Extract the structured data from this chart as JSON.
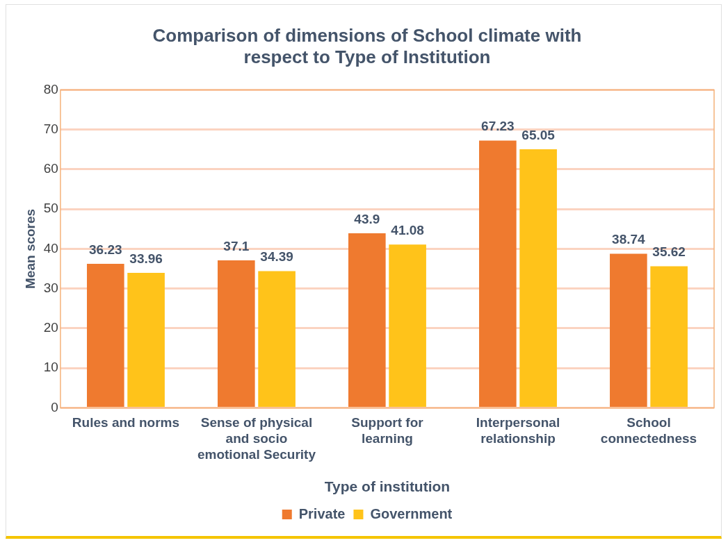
{
  "chart_data": {
    "type": "bar",
    "title": "Comparison of dimensions of School climate with respect to Type of Institution",
    "xlabel": "Type of institution",
    "ylabel": "Mean scores",
    "categories": [
      "Rules and norms",
      "Sense of physical and socio emotional Security",
      "Support for learning",
      "Interpersonal relationship",
      "School connectedness"
    ],
    "series": [
      {
        "name": "Private",
        "color": "#ef7a2f",
        "values": [
          36.23,
          37.1,
          43.9,
          67.23,
          38.74
        ]
      },
      {
        "name": "Government",
        "color": "#ffc31a",
        "values": [
          33.96,
          34.39,
          41.08,
          65.05,
          35.62
        ]
      }
    ],
    "ylim": [
      0,
      80
    ],
    "yticks": [
      0,
      10,
      20,
      30,
      40,
      50,
      60,
      70,
      80
    ],
    "grid": "y",
    "legend": "bottom",
    "data_labels": true
  }
}
